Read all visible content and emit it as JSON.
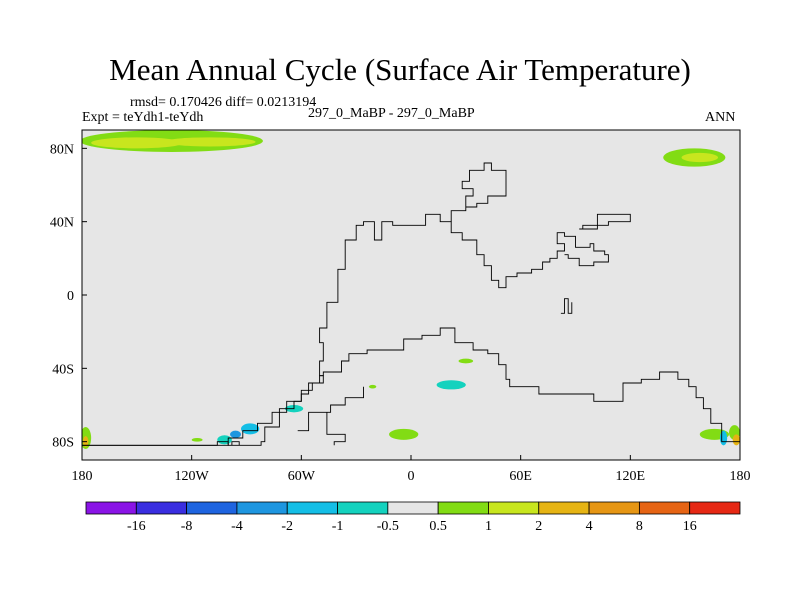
{
  "chart_data": {
    "type": "heatmap",
    "title": "Mean Annual Cycle (Surface Air Temperature)",
    "stats_label": "rmsd= 0.170426 diff= 0.0213194",
    "experiment_label": "Expt = teYdh1-teYdh",
    "subtitle": "297_0_MaBP - 297_0_MaBP",
    "season": "ANN",
    "xlim": [
      -180,
      180
    ],
    "ylim": [
      -90,
      90
    ],
    "x_ticks": [
      {
        "value": -180,
        "label": "180"
      },
      {
        "value": -120,
        "label": "120W"
      },
      {
        "value": -60,
        "label": "60W"
      },
      {
        "value": 0,
        "label": "0"
      },
      {
        "value": 60,
        "label": "60E"
      },
      {
        "value": 120,
        "label": "120E"
      },
      {
        "value": 180,
        "label": "180"
      }
    ],
    "y_ticks": [
      {
        "value": 80,
        "label": "80N"
      },
      {
        "value": 40,
        "label": "40N"
      },
      {
        "value": 0,
        "label": "0"
      },
      {
        "value": -40,
        "label": "40S"
      },
      {
        "value": -80,
        "label": "80S"
      }
    ],
    "colorbar": {
      "colors": [
        "#8a14e6",
        "#3a2ee0",
        "#1e64e0",
        "#1e96e0",
        "#14bee6",
        "#14d2be",
        "#e6e6e6",
        "#82dc14",
        "#c8e61e",
        "#e6b414",
        "#e69614",
        "#e66414",
        "#e62814"
      ],
      "labels": [
        "-16",
        "-8",
        "-4",
        "-2",
        "-1",
        "-0.5",
        "0.5",
        "1",
        "2",
        "4",
        "8",
        "16"
      ]
    },
    "background_color": "#e6e6e6",
    "anomaly_patches": [
      {
        "lon": -131,
        "lat": 84,
        "rlon": 50,
        "rlat": 6,
        "color": "#82dc14"
      },
      {
        "lon": -150,
        "lat": 83,
        "rlon": 25,
        "rlat": 3,
        "color": "#c8e61e"
      },
      {
        "lon": -110,
        "lat": 83.5,
        "rlon": 25,
        "rlat": 2.5,
        "color": "#c8e61e"
      },
      {
        "lon": 155,
        "lat": 75,
        "rlon": 17,
        "rlat": 5,
        "color": "#82dc14"
      },
      {
        "lon": 158,
        "lat": 75,
        "rlon": 10,
        "rlat": 2.5,
        "color": "#c8e61e"
      },
      {
        "lon": 30,
        "lat": -36,
        "rlon": 4,
        "rlat": 1.3,
        "color": "#82dc14"
      },
      {
        "lon": 22,
        "lat": -49,
        "rlon": 8,
        "rlat": 2.5,
        "color": "#14d2be"
      },
      {
        "lon": -64,
        "lat": -62,
        "rlon": 5,
        "rlat": 2,
        "color": "#14d2be"
      },
      {
        "lon": -88,
        "lat": -73,
        "rlon": 5,
        "rlat": 3,
        "color": "#14bee6"
      },
      {
        "lon": -96,
        "lat": -76,
        "rlon": 3,
        "rlat": 2,
        "color": "#1e96e0"
      },
      {
        "lon": -102,
        "lat": -79,
        "rlon": 4,
        "rlat": 2.5,
        "color": "#14d2be"
      },
      {
        "lon": -117,
        "lat": -79,
        "rlon": 3,
        "rlat": 1,
        "color": "#82dc14"
      },
      {
        "lon": -21,
        "lat": -50,
        "rlon": 2,
        "rlat": 1,
        "color": "#82dc14"
      },
      {
        "lon": -4,
        "lat": -76,
        "rlon": 8,
        "rlat": 3,
        "color": "#82dc14"
      },
      {
        "lon": 166,
        "lat": -76,
        "rlon": 8,
        "rlat": 3,
        "color": "#82dc14"
      },
      {
        "lon": -178,
        "lat": -78,
        "rlon": 3,
        "rlat": 6,
        "color": "#82dc14"
      },
      {
        "lon": -178,
        "lat": -80,
        "rlon": 1.5,
        "rlat": 3,
        "color": "#e6b414"
      },
      {
        "lon": 177,
        "lat": -75,
        "rlon": 3,
        "rlat": 4,
        "color": "#82dc14"
      },
      {
        "lon": 178,
        "lat": -79,
        "rlon": 2,
        "rlat": 3,
        "color": "#e6b414"
      },
      {
        "lon": 171,
        "lat": -78,
        "rlon": 2,
        "rlat": 4,
        "color": "#14bee6"
      }
    ],
    "coastlines": [
      [
        [
          -180,
          -82
        ],
        [
          -100,
          -82
        ],
        [
          -100,
          -78
        ],
        [
          -92,
          -78
        ],
        [
          -92,
          -74
        ],
        [
          -84,
          -74
        ],
        [
          -84,
          -70
        ],
        [
          -76,
          -70
        ],
        [
          -76,
          -64
        ],
        [
          -68,
          -64
        ],
        [
          -68,
          -58
        ],
        [
          -60,
          -58
        ],
        [
          -60,
          -52
        ],
        [
          -54,
          -52
        ],
        [
          -54,
          -48
        ],
        [
          -48,
          -48
        ],
        [
          -48,
          -44
        ],
        [
          -50,
          -44
        ],
        [
          -50,
          -36
        ],
        [
          -48,
          -36
        ],
        [
          -48,
          -26
        ],
        [
          -50,
          -26
        ],
        [
          -50,
          -18
        ],
        [
          -46,
          -18
        ],
        [
          -46,
          -4
        ],
        [
          -40,
          -4
        ],
        [
          -40,
          14
        ],
        [
          -36,
          14
        ],
        [
          -36,
          30
        ],
        [
          -30,
          30
        ],
        [
          -30,
          38
        ],
        [
          -26,
          38
        ],
        [
          -26,
          40
        ],
        [
          -20,
          40
        ],
        [
          -20,
          30
        ],
        [
          -16,
          30
        ],
        [
          -16,
          40
        ],
        [
          -10,
          40
        ],
        [
          -10,
          38
        ],
        [
          8,
          38
        ],
        [
          8,
          44
        ],
        [
          16,
          44
        ],
        [
          16,
          40
        ],
        [
          22,
          40
        ],
        [
          22,
          34
        ],
        [
          28,
          34
        ],
        [
          28,
          30
        ],
        [
          36,
          30
        ],
        [
          36,
          22
        ],
        [
          40,
          22
        ],
        [
          40,
          16
        ],
        [
          44,
          16
        ],
        [
          44,
          8
        ],
        [
          48,
          8
        ],
        [
          48,
          4
        ],
        [
          52,
          4
        ],
        [
          52,
          10
        ],
        [
          58,
          10
        ],
        [
          58,
          12
        ],
        [
          66,
          12
        ],
        [
          66,
          14
        ],
        [
          72,
          14
        ],
        [
          72,
          18
        ],
        [
          76,
          18
        ],
        [
          76,
          20
        ],
        [
          80,
          20
        ],
        [
          80,
          24
        ],
        [
          84,
          24
        ],
        [
          84,
          28
        ],
        [
          80,
          28
        ],
        [
          80,
          34
        ],
        [
          84,
          34
        ],
        [
          84,
          32
        ],
        [
          90,
          32
        ],
        [
          90,
          26
        ],
        [
          98,
          26
        ],
        [
          98,
          28
        ],
        [
          100,
          28
        ],
        [
          100,
          24
        ],
        [
          106,
          24
        ],
        [
          106,
          22
        ],
        [
          108,
          22
        ],
        [
          108,
          18
        ],
        [
          100,
          18
        ],
        [
          100,
          16
        ],
        [
          92,
          16
        ],
        [
          92,
          20
        ],
        [
          86,
          20
        ],
        [
          86,
          22
        ],
        [
          84,
          22
        ]
      ],
      [
        [
          -180,
          -82
        ],
        [
          -180,
          -80
        ]
      ],
      [
        [
          82,
          -10
        ],
        [
          84,
          -10
        ],
        [
          84,
          -2
        ],
        [
          86,
          -2
        ],
        [
          86,
          -10
        ],
        [
          88,
          -10
        ],
        [
          88,
          -4
        ]
      ],
      [
        [
          92,
          36
        ],
        [
          102,
          36
        ],
        [
          102,
          44
        ],
        [
          120,
          44
        ],
        [
          120,
          40
        ],
        [
          108,
          40
        ],
        [
          108,
          38
        ],
        [
          94,
          38
        ],
        [
          94,
          36
        ]
      ],
      [
        [
          22,
          40
        ],
        [
          22,
          46
        ],
        [
          30,
          46
        ],
        [
          30,
          48
        ],
        [
          36,
          48
        ],
        [
          36,
          50
        ],
        [
          42,
          50
        ],
        [
          42,
          54
        ],
        [
          52,
          54
        ],
        [
          52,
          68
        ],
        [
          44,
          68
        ],
        [
          44,
          72
        ],
        [
          40,
          72
        ],
        [
          40,
          68
        ],
        [
          32,
          68
        ],
        [
          32,
          62
        ],
        [
          28,
          62
        ],
        [
          28,
          58
        ],
        [
          34,
          58
        ],
        [
          34,
          54
        ],
        [
          30,
          54
        ],
        [
          30,
          48
        ]
      ]
    ],
    "boundaries": [
      [
        [
          -180,
          -82
        ],
        [
          -106,
          -82
        ],
        [
          -106,
          -80
        ],
        [
          -100,
          -80
        ],
        [
          -100,
          -82
        ],
        [
          -82,
          -82
        ],
        [
          -82,
          -80
        ],
        [
          -80,
          -80
        ],
        [
          -80,
          -72
        ],
        [
          -72,
          -72
        ],
        [
          -72,
          -62
        ],
        [
          -64,
          -62
        ],
        [
          -64,
          -58
        ],
        [
          -60,
          -58
        ],
        [
          -60,
          -54
        ],
        [
          -56,
          -54
        ],
        [
          -56,
          -48
        ],
        [
          -50,
          -48
        ],
        [
          -50,
          -44
        ],
        [
          -48,
          -44
        ],
        [
          -48,
          -42
        ],
        [
          -38,
          -42
        ],
        [
          -38,
          -36
        ],
        [
          -34,
          -36
        ],
        [
          -34,
          -32
        ],
        [
          -24,
          -32
        ],
        [
          -24,
          -30
        ],
        [
          -4,
          -30
        ],
        [
          -4,
          -24
        ],
        [
          6,
          -24
        ],
        [
          6,
          -22
        ],
        [
          16,
          -22
        ],
        [
          16,
          -18
        ],
        [
          24,
          -18
        ],
        [
          24,
          -26
        ],
        [
          34,
          -26
        ],
        [
          34,
          -30
        ],
        [
          42,
          -30
        ],
        [
          42,
          -32
        ],
        [
          48,
          -32
        ],
        [
          48,
          -38
        ],
        [
          52,
          -38
        ],
        [
          52,
          -46
        ],
        [
          54,
          -46
        ],
        [
          54,
          -50
        ],
        [
          70,
          -50
        ],
        [
          70,
          -54
        ],
        [
          100,
          -54
        ],
        [
          100,
          -58
        ],
        [
          116,
          -58
        ],
        [
          116,
          -48
        ],
        [
          126,
          -48
        ],
        [
          126,
          -46
        ],
        [
          136,
          -46
        ],
        [
          136,
          -42
        ],
        [
          146,
          -42
        ],
        [
          146,
          -46
        ],
        [
          152,
          -46
        ],
        [
          152,
          -50
        ],
        [
          156,
          -50
        ],
        [
          156,
          -56
        ],
        [
          160,
          -56
        ],
        [
          160,
          -62
        ],
        [
          164,
          -62
        ],
        [
          164,
          -70
        ],
        [
          170,
          -70
        ],
        [
          170,
          -80
        ],
        [
          180,
          -80
        ]
      ],
      [
        [
          -62,
          -74
        ],
        [
          -56,
          -74
        ],
        [
          -56,
          -64
        ],
        [
          -44,
          -64
        ],
        [
          -44,
          -60
        ],
        [
          -36,
          -60
        ],
        [
          -36,
          -56
        ],
        [
          -26,
          -56
        ],
        [
          -26,
          -50
        ]
      ],
      [
        [
          -46,
          -64
        ],
        [
          -46,
          -76
        ],
        [
          -36,
          -76
        ],
        [
          -36,
          -80
        ],
        [
          -42,
          -80
        ],
        [
          -42,
          -82
        ]
      ],
      [
        [
          -98,
          -82
        ],
        [
          -98,
          -80
        ],
        [
          -94,
          -80
        ],
        [
          -94,
          -82
        ]
      ]
    ]
  }
}
